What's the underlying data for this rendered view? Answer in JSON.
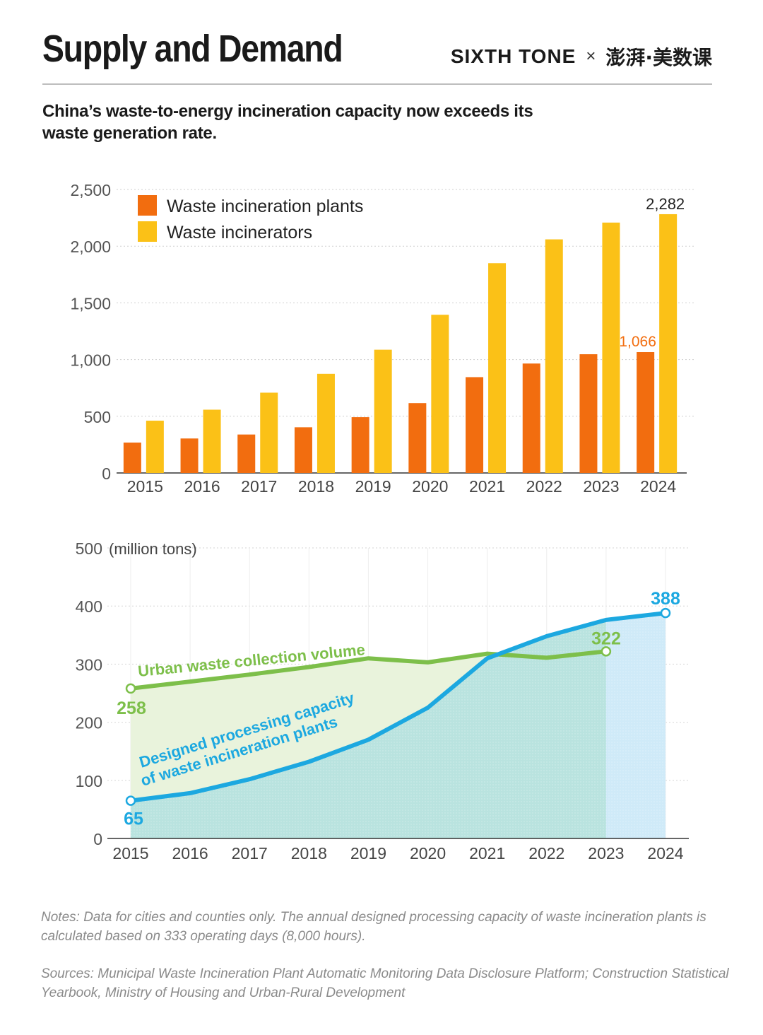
{
  "header": {
    "title": "Supply and Demand",
    "brand_primary": "SIXTH TONE",
    "brand_separator": "×",
    "brand_secondary": "澎湃·美数课"
  },
  "subtitle": "China’s waste-to-energy incineration capacity now exceeds its waste generation rate.",
  "footer": {
    "notes": "Notes:  Data for cities and counties only. The annual designed processing capacity of waste incineration plants is calculated based on 333 operating days (8,000 hours).",
    "sources": "Sources: Municipal Waste Incineration Plant Automatic Monitoring Data Disclosure Platform; Construction Statistical Yearbook, Ministry of Housing and Urban-Rural Development"
  },
  "chart_data": [
    {
      "type": "bar",
      "categories": [
        "2015",
        "2016",
        "2017",
        "2018",
        "2019",
        "2020",
        "2021",
        "2022",
        "2023",
        "2024"
      ],
      "series": [
        {
          "name": "Waste incineration plants",
          "color": "#f26d0f",
          "values": [
            268,
            304,
            339,
            403,
            492,
            616,
            845,
            965,
            1047,
            1066
          ],
          "labeled": [
            {
              "index": 9,
              "text": "1,066"
            }
          ]
        },
        {
          "name": "Waste incinerators",
          "color": "#fbc117",
          "values": [
            461,
            558,
            708,
            874,
            1087,
            1395,
            1850,
            2060,
            2208,
            2282
          ],
          "labeled": [
            {
              "index": 9,
              "text": "2,282"
            }
          ]
        }
      ],
      "ylim": [
        0,
        2500
      ],
      "yticks": [
        0,
        500,
        1000,
        1500,
        2000,
        2500
      ],
      "ytick_labels": [
        "0",
        "500",
        "1,000",
        "1,500",
        "2,000",
        "2,500"
      ],
      "grid": true,
      "legend": "top-left"
    },
    {
      "type": "line",
      "x": [
        "2015",
        "2016",
        "2017",
        "2018",
        "2019",
        "2020",
        "2021",
        "2022",
        "2023",
        "2024"
      ],
      "ylabel": "(million tons)",
      "ylim": [
        0,
        500
      ],
      "yticks": [
        0,
        100,
        200,
        300,
        400,
        500
      ],
      "series": [
        {
          "name": "Urban waste collection volume",
          "color": "#7dbf4a",
          "values": [
            258,
            270,
            282,
            295,
            310,
            303,
            318,
            311,
            322,
            null
          ],
          "labeled": [
            {
              "index": 0,
              "text": "258"
            },
            {
              "index": 8,
              "text": "322"
            }
          ]
        },
        {
          "name": "Designed processing capacity of waste incineration plants",
          "name_line1": "Designed processing capacity",
          "name_line2": "of waste incineration plants",
          "color": "#1ca8e0",
          "values": [
            65,
            78,
            102,
            132,
            170,
            225,
            310,
            348,
            376,
            388
          ],
          "labeled": [
            {
              "index": 0,
              "text": "65"
            },
            {
              "index": 9,
              "text": "388"
            }
          ]
        }
      ],
      "grid": true
    }
  ]
}
